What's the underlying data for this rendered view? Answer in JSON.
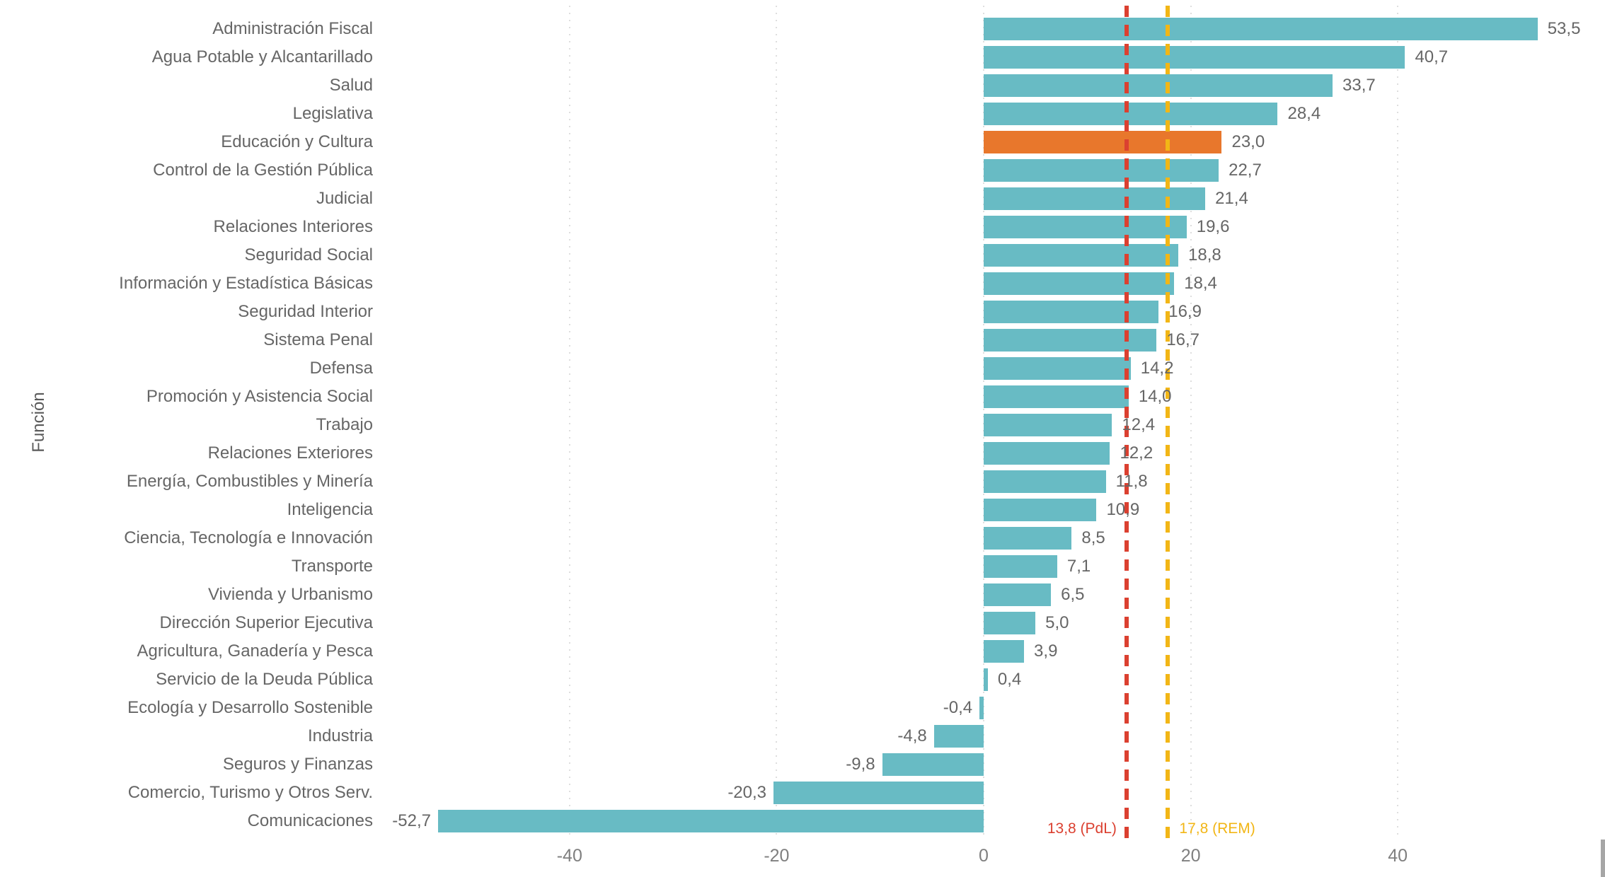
{
  "chart_data": {
    "type": "bar",
    "orientation": "horizontal",
    "title": "",
    "xlabel": "",
    "ylabel": "Función",
    "grid": "vertical-dotted",
    "xlim": [
      -58.5,
      60
    ],
    "categories": [
      "Administración Fiscal",
      "Agua Potable y Alcantarillado",
      "Salud",
      "Legislativa",
      "Educación y Cultura",
      "Control de la Gestión Pública",
      "Judicial",
      "Relaciones Interiores",
      "Seguridad Social",
      "Información y Estadística Básicas",
      "Seguridad Interior",
      "Sistema Penal",
      "Defensa",
      "Promoción y Asistencia Social",
      "Trabajo",
      "Relaciones Exteriores",
      "Energía, Combustibles y Minería",
      "Inteligencia",
      "Ciencia, Tecnología e Innovación",
      "Transporte",
      "Vivienda y Urbanismo",
      "Dirección Superior Ejecutiva",
      "Agricultura, Ganadería y Pesca",
      "Servicio de la Deuda Pública",
      "Ecología y Desarrollo Sostenible",
      "Industria",
      "Seguros y Finanzas",
      "Comercio, Turismo y Otros Serv.",
      "Comunicaciones"
    ],
    "values": [
      53.5,
      40.7,
      33.7,
      28.4,
      23.0,
      22.7,
      21.4,
      19.6,
      18.8,
      18.4,
      16.9,
      16.7,
      14.2,
      14.0,
      12.4,
      12.2,
      11.8,
      10.9,
      8.5,
      7.1,
      6.5,
      5.0,
      3.9,
      0.4,
      -0.4,
      -4.8,
      -9.8,
      -20.3,
      -52.7
    ],
    "value_labels": [
      "53,5",
      "40,7",
      "33,7",
      "28,4",
      "23,0",
      "22,7",
      "21,4",
      "19,6",
      "18,8",
      "18,4",
      "16,9",
      "16,7",
      "14,2",
      "14,0",
      "12,4",
      "12,2",
      "11,8",
      "10,9",
      "8,5",
      "7,1",
      "6,5",
      "5,0",
      "3,9",
      "0,4",
      "-0,4",
      "-4,8",
      "-9,8",
      "-20,3",
      "-52,7"
    ],
    "highlighted_category": "Educación y Cultura",
    "bar_color": "#68BBC4",
    "highlight_color": "#E8772C",
    "x_ticks": [
      -40,
      -20,
      0,
      20,
      40
    ],
    "x_tick_labels": [
      "-40",
      "-20",
      "0",
      "20",
      "40"
    ],
    "reference_lines": [
      {
        "value": 13.8,
        "label": "13,8 (PdL)",
        "color": "#DB4030",
        "label_side": "left"
      },
      {
        "value": 17.8,
        "label": "17,8 (REM)",
        "color": "#F2B616",
        "label_side": "right"
      }
    ],
    "legend": "none"
  }
}
